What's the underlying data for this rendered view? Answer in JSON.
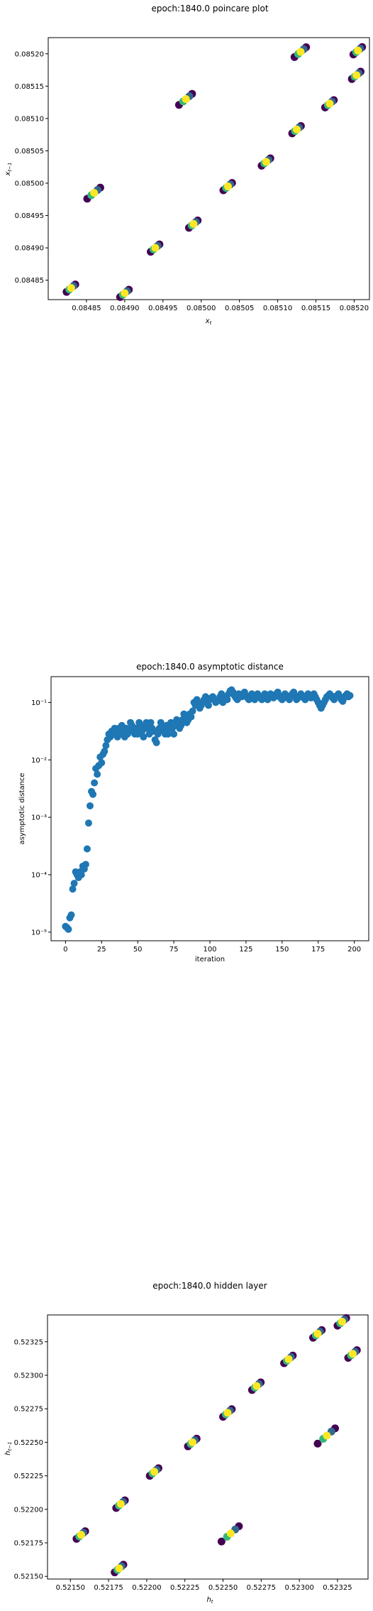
{
  "chart_data": [
    {
      "type": "scatter",
      "title": "epoch:1840.0 poincare plot",
      "xlabel": "x_t",
      "ylabel": "x_{t-1}",
      "xlim": [
        0.0848,
        0.08522
      ],
      "ylim": [
        0.08482,
        0.085225
      ],
      "xticks": [
        "0.08485",
        "0.08490",
        "0.08495",
        "0.08500",
        "0.08505",
        "0.08510",
        "0.08515",
        "0.08520"
      ],
      "xtick_values": [
        0.08485,
        0.0849,
        0.08495,
        0.085,
        0.08505,
        0.0851,
        0.08515,
        0.0852
      ],
      "yticks": [
        "0.08485",
        "0.08490",
        "0.08495",
        "0.08500",
        "0.08505",
        "0.08510",
        "0.08515",
        "0.08520"
      ],
      "ytick_values": [
        0.08485,
        0.0849,
        0.08495,
        0.085,
        0.08505,
        0.0851,
        0.08515,
        0.0852
      ],
      "colors": {
        "early": "#440154",
        "mid": "#31688e",
        "late": "#35b779",
        "last": "#fde725"
      },
      "clusters": [
        {
          "x": 0.08483,
          "y": 0.084838,
          "spread": 6e-06
        },
        {
          "x": 0.08486,
          "y": 0.084985,
          "spread": 9e-06
        },
        {
          "x": 0.0849,
          "y": 0.08483,
          "spread": 6e-06
        },
        {
          "x": 0.08494,
          "y": 0.0849,
          "spread": 6e-06
        },
        {
          "x": 0.08499,
          "y": 0.084937,
          "spread": 6e-06
        },
        {
          "x": 0.08498,
          "y": 0.08513,
          "spread": 9e-06
        },
        {
          "x": 0.085035,
          "y": 0.084995,
          "spread": 6e-06
        },
        {
          "x": 0.085085,
          "y": 0.085033,
          "spread": 6e-06
        },
        {
          "x": 0.085125,
          "y": 0.085083,
          "spread": 6e-06
        },
        {
          "x": 0.08513,
          "y": 0.085203,
          "spread": 8e-06
        },
        {
          "x": 0.085168,
          "y": 0.085123,
          "spread": 6e-06
        },
        {
          "x": 0.085203,
          "y": 0.085167,
          "spread": 6e-06
        },
        {
          "x": 0.085205,
          "y": 0.085205,
          "spread": 6e-06
        }
      ]
    },
    {
      "type": "scatter",
      "title": "epoch:1840.0 asymptotic distance",
      "xlabel": "iteration",
      "ylabel": "asymptotic distance",
      "yscale": "log",
      "xlim": [
        -10,
        210
      ],
      "ylim_exp": [
        -5.15,
        -0.55
      ],
      "xticks": [
        "0",
        "25",
        "50",
        "75",
        "100",
        "125",
        "150",
        "175",
        "200"
      ],
      "xtick_values": [
        0,
        25,
        50,
        75,
        100,
        125,
        150,
        175,
        200
      ],
      "yticks": [
        "10⁻⁵",
        "10⁻⁴",
        "10⁻³",
        "10⁻²",
        "10⁻¹"
      ],
      "ytick_exps": [
        -5,
        -4,
        -3,
        -2,
        -1
      ],
      "color": "#1f77b4",
      "y_log10": [
        -4.9,
        -4.92,
        -4.95,
        -4.75,
        -4.7,
        -4.25,
        -4.15,
        -3.95,
        -4.0,
        -4.05,
        -3.95,
        -4.0,
        -3.85,
        -3.9,
        -3.82,
        -3.55,
        -3.1,
        -2.8,
        -2.55,
        -2.6,
        -2.4,
        -2.15,
        -2.25,
        -2.1,
        -1.95,
        -2.05,
        -1.9,
        -1.85,
        -1.75,
        -1.65,
        -1.55,
        -1.6,
        -1.5,
        -1.55,
        -1.45,
        -1.5,
        -1.6,
        -1.45,
        -1.55,
        -1.4,
        -1.5,
        -1.6,
        -1.45,
        -1.55,
        -1.5,
        -1.35,
        -1.4,
        -1.5,
        -1.55,
        -1.45,
        -1.55,
        -1.35,
        -1.4,
        -1.5,
        -1.6,
        -1.45,
        -1.35,
        -1.45,
        -1.55,
        -1.35,
        -1.45,
        -1.5,
        -1.65,
        -1.7,
        -1.55,
        -1.45,
        -1.35,
        -1.4,
        -1.5,
        -1.55,
        -1.4,
        -1.55,
        -1.45,
        -1.35,
        -1.45,
        -1.55,
        -1.4,
        -1.3,
        -1.35,
        -1.45,
        -1.4,
        -1.3,
        -1.2,
        -1.25,
        -1.35,
        -1.3,
        -1.2,
        -1.25,
        -1.15,
        -1.0,
        -1.05,
        -0.95,
        -1.0,
        -1.1,
        -1.05,
        -1.0,
        -0.95,
        -0.9,
        -1.0,
        -1.05,
        -0.95,
        -0.92,
        -0.9,
        -0.95,
        -1.0,
        -0.98,
        -0.95,
        -0.9,
        -0.85,
        -1.0,
        -0.92,
        -0.9,
        -0.95,
        -0.85,
        -0.8,
        -0.78,
        -0.82,
        -0.88,
        -0.92,
        -0.95,
        -0.85,
        -0.88,
        -0.9,
        -0.85,
        -0.82,
        -0.88,
        -0.92,
        -0.95,
        -0.9,
        -0.85,
        -0.9,
        -0.95,
        -0.88,
        -0.85,
        -0.9,
        -0.92,
        -0.95,
        -0.88,
        -0.85,
        -0.9,
        -0.95,
        -0.9,
        -0.85,
        -0.88,
        -0.92,
        -0.9,
        -0.85,
        -0.82,
        -0.88,
        -0.92,
        -0.95,
        -0.9,
        -0.85,
        -0.88,
        -0.92,
        -0.95,
        -0.9,
        -0.85,
        -0.82,
        -0.88,
        -0.95,
        -0.92,
        -0.9,
        -0.85,
        -0.88,
        -0.92,
        -0.95,
        -0.9,
        -0.85,
        -0.88,
        -0.92,
        -0.88,
        -0.85,
        -0.9,
        -0.95,
        -1.0,
        -1.05,
        -1.1,
        -1.05,
        -1.0,
        -0.95,
        -0.9,
        -0.88,
        -0.85,
        -0.88,
        -0.92,
        -0.95,
        -0.9,
        -0.88,
        -0.85,
        -0.9,
        -0.95,
        -0.98,
        -0.92,
        -0.88,
        -0.85,
        -0.9,
        -0.88
      ]
    },
    {
      "type": "scatter",
      "title": "epoch:1840.0 hidden layer",
      "xlabel": "h_t",
      "ylabel": "h_{t-1}",
      "xlim": [
        0.52135,
        0.52345
      ],
      "ylim": [
        0.52148,
        0.52345
      ],
      "xticks": [
        "0.52150",
        "0.52175",
        "0.52200",
        "0.52225",
        "0.52250",
        "0.52275",
        "0.52300",
        "0.52325"
      ],
      "xtick_values": [
        0.5215,
        0.52175,
        0.522,
        0.52225,
        0.5225,
        0.52275,
        0.523,
        0.52325
      ],
      "yticks": [
        "0.52150",
        "0.52175",
        "0.52200",
        "0.52225",
        "0.52250",
        "0.52275",
        "0.52300",
        "0.52325"
      ],
      "ytick_values": [
        0.5215,
        0.52175,
        0.522,
        0.52225,
        0.5225,
        0.52275,
        0.523,
        0.52325
      ],
      "colors": {
        "early": "#440154",
        "mid": "#31688e",
        "late": "#35b779",
        "last": "#fde725"
      },
      "clusters": [
        {
          "x": 0.52157,
          "y": 0.52181,
          "spread": 3e-05
        },
        {
          "x": 0.52182,
          "y": 0.52156,
          "spread": 3e-05
        },
        {
          "x": 0.52183,
          "y": 0.52204,
          "spread": 3e-05
        },
        {
          "x": 0.52205,
          "y": 0.52228,
          "spread": 3e-05
        },
        {
          "x": 0.5223,
          "y": 0.5225,
          "spread": 3e-05
        },
        {
          "x": 0.52253,
          "y": 0.52272,
          "spread": 3e-05
        },
        {
          "x": 0.52255,
          "y": 0.52182,
          "spread": 6e-05
        },
        {
          "x": 0.52272,
          "y": 0.52292,
          "spread": 3e-05
        },
        {
          "x": 0.52293,
          "y": 0.52312,
          "spread": 3e-05
        },
        {
          "x": 0.52312,
          "y": 0.52331,
          "spread": 3e-05
        },
        {
          "x": 0.52318,
          "y": 0.52255,
          "spread": 6e-05
        },
        {
          "x": 0.52328,
          "y": 0.5234,
          "spread": 3e-05
        },
        {
          "x": 0.52335,
          "y": 0.52316,
          "spread": 3e-05
        }
      ]
    }
  ]
}
